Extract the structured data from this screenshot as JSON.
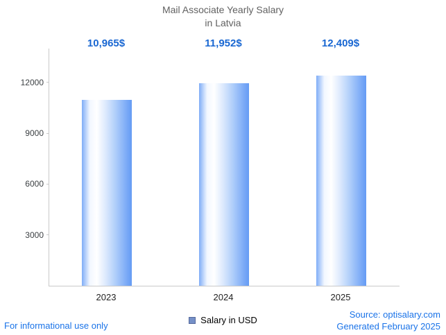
{
  "title": {
    "line1": "Mail Associate Yearly Salary",
    "line2": "in Latvia"
  },
  "chart_data": {
    "type": "bar",
    "title": "Mail Associate Yearly Salary in Latvia",
    "categories": [
      "2023",
      "2024",
      "2025"
    ],
    "values": [
      10965,
      11952,
      12409
    ],
    "value_labels": [
      "10,965$",
      "11,952$",
      "12,409$"
    ],
    "xlabel": "",
    "ylabel": "",
    "ylim": [
      0,
      14000
    ],
    "yticks": [
      3000,
      6000,
      9000,
      12000
    ],
    "grid": false,
    "legend": [
      "Salary in USD"
    ],
    "legend_position": "bottom",
    "bar_gradient": [
      "#7fadf7",
      "#ffffff",
      "#649bf4"
    ],
    "legend_marker_color": "#7590c7"
  },
  "footer": {
    "disclaimer": "For informational use only",
    "source": "Source: optisalary.com",
    "generated": "Generated February 2025"
  },
  "colors": {
    "title": "#616161",
    "value_label": "#1967d2",
    "footer_text": "#1a73e8",
    "axis": "#c9c9c9"
  }
}
